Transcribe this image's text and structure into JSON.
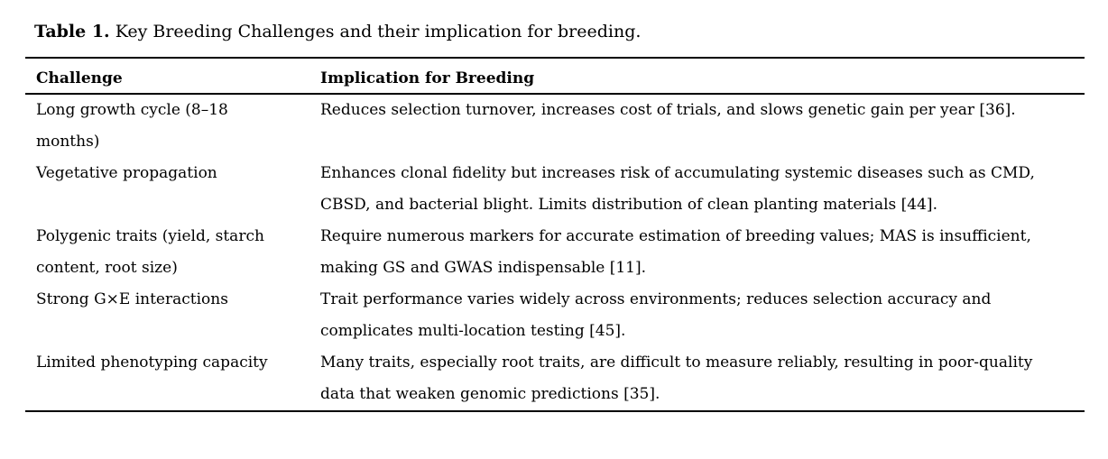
{
  "caption": {
    "prefix": "Table 1.",
    "text": "Key Breeding Challenges and their implication for breeding."
  },
  "table": {
    "columns": [
      {
        "label": "Challenge"
      },
      {
        "label": "Implication for Breeding"
      }
    ],
    "rows": [
      {
        "challenge": {
          "lines": [
            "Long growth cycle (8–18",
            "months)"
          ]
        },
        "implication": {
          "lines": [
            "Reduces selection turnover, increases cost of trials, and slows genetic gain per year [36]."
          ]
        }
      },
      {
        "challenge": {
          "lines": [
            "Vegetative propagation"
          ]
        },
        "implication": {
          "lines": [
            "Enhances clonal fidelity but increases risk of accumulating systemic diseases such as CMD,",
            "CBSD, and bacterial blight. Limits distribution of clean planting materials [44]."
          ]
        }
      },
      {
        "challenge": {
          "lines": [
            "Polygenic traits (yield, starch",
            "content, root size)"
          ]
        },
        "implication": {
          "lines": [
            "Require numerous markers for accurate estimation of breeding values; MAS is insufficient,",
            "making GS and GWAS indispensable [11]."
          ]
        }
      },
      {
        "challenge": {
          "lines": [
            "Strong G×E interactions"
          ]
        },
        "implication": {
          "lines": [
            "Trait performance varies widely across environments; reduces selection accuracy and",
            "complicates multi-location testing [45]."
          ]
        }
      },
      {
        "challenge": {
          "lines": [
            "Limited phenotyping capacity"
          ]
        },
        "implication": {
          "lines": [
            "Many traits, especially root traits, are difficult to measure reliably, resulting in poor-quality",
            "data that weaken genomic predictions [35]."
          ]
        }
      }
    ]
  }
}
